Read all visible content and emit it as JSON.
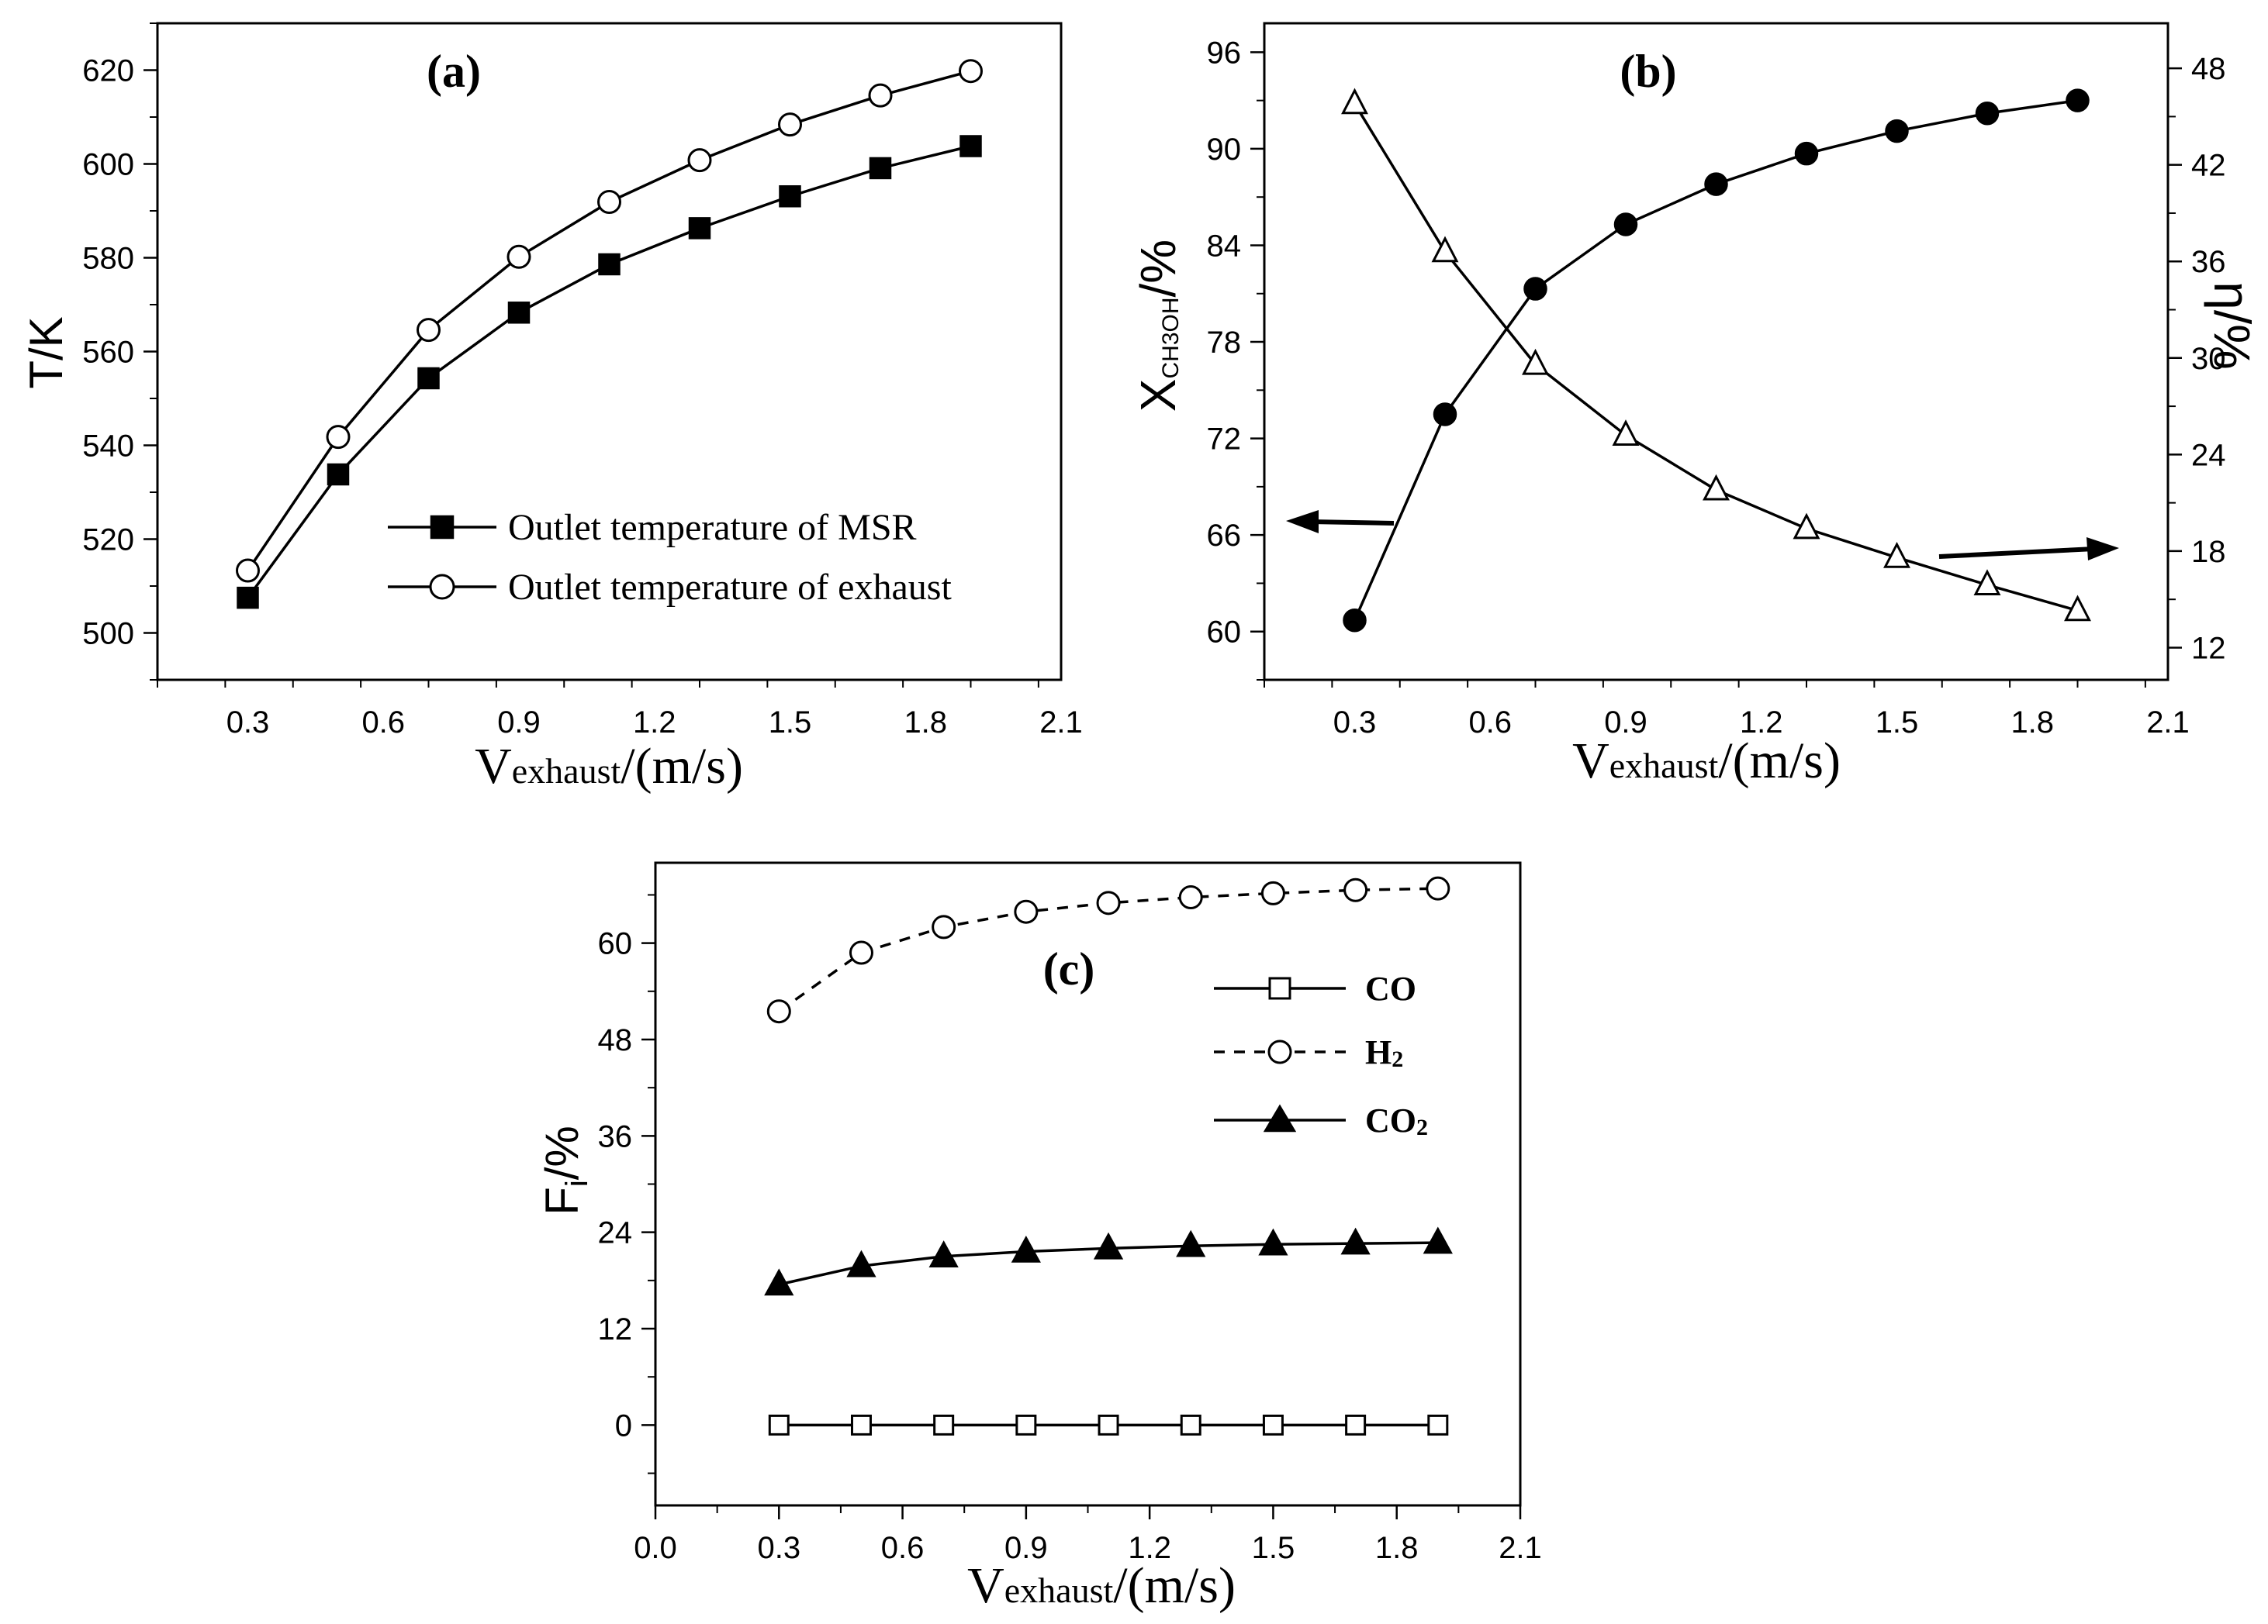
{
  "figure": {
    "colors": {
      "ink": "#000000",
      "background": "#ffffff"
    }
  },
  "chart_data": [
    {
      "id": "a",
      "type": "line",
      "panel_label": "(a)",
      "xlabel_main": "V",
      "xlabel_sub": "exhaust",
      "xlabel_unit": "/(m/s)",
      "ylabel": "T/K",
      "x": [
        0.3,
        0.5,
        0.7,
        0.9,
        1.1,
        1.3,
        1.5,
        1.7,
        1.9
      ],
      "xlim": [
        0.1,
        2.1
      ],
      "ylim": [
        490,
        630
      ],
      "x_ticks": [
        "0.3",
        "0.6",
        "0.9",
        "1.2",
        "1.5",
        "1.8",
        "2.1"
      ],
      "x_tick_values": [
        0.3,
        0.6,
        0.9,
        1.2,
        1.5,
        1.8,
        2.1
      ],
      "y_ticks": [
        "500",
        "520",
        "540",
        "560",
        "580",
        "600",
        "620"
      ],
      "y_tick_values": [
        500,
        520,
        540,
        560,
        580,
        600,
        620
      ],
      "legend_position": "lower-right",
      "series": [
        {
          "name": "Outlet temperature of MSR",
          "marker": "square-filled",
          "line": "solid",
          "values": [
            507.5,
            533.8,
            554.3,
            568.3,
            578.6,
            586.3,
            593.1,
            599.1,
            603.8
          ]
        },
        {
          "name": "Outlet temperature of exhaust",
          "marker": "circle-open",
          "line": "solid",
          "values": [
            513.3,
            541.8,
            564.6,
            580.2,
            591.9,
            600.8,
            608.4,
            614.6,
            619.8
          ]
        }
      ]
    },
    {
      "id": "b",
      "type": "line",
      "panel_label": "(b)",
      "xlabel_main": "V",
      "xlabel_sub": "exhaust",
      "xlabel_unit": "/(m/s)",
      "ylabel_main": "X",
      "ylabel_sub": "CH3OH",
      "ylabel_unit": "/%",
      "y2label": "η/%",
      "x": [
        0.3,
        0.5,
        0.7,
        0.9,
        1.1,
        1.3,
        1.5,
        1.7,
        1.9
      ],
      "xlim": [
        0.1,
        2.1
      ],
      "ylim": [
        57,
        97.8
      ],
      "y2lim": [
        10,
        50.8
      ],
      "x_ticks": [
        "0.3",
        "0.6",
        "0.9",
        "1.2",
        "1.5",
        "1.8",
        "2.1"
      ],
      "x_tick_values": [
        0.3,
        0.6,
        0.9,
        1.2,
        1.5,
        1.8,
        2.1
      ],
      "y_ticks": [
        "60",
        "66",
        "72",
        "78",
        "84",
        "90",
        "96"
      ],
      "y_tick_values": [
        60,
        66,
        72,
        78,
        84,
        90,
        96
      ],
      "y2_ticks": [
        "12",
        "18",
        "24",
        "30",
        "36",
        "42",
        "48"
      ],
      "y2_tick_values": [
        12,
        18,
        24,
        30,
        36,
        42,
        48
      ],
      "series": [
        {
          "name": "X_CH3OH",
          "axis": "left",
          "marker": "circle-filled",
          "line": "solid",
          "values": [
            60.7,
            73.5,
            81.3,
            85.3,
            87.8,
            89.7,
            91.1,
            92.2,
            93.0
          ]
        },
        {
          "name": "η",
          "axis": "right",
          "marker": "triangle-open",
          "line": "solid",
          "values": [
            45.8,
            36.6,
            29.6,
            25.2,
            21.8,
            19.4,
            17.6,
            15.9,
            14.3
          ]
        }
      ],
      "annotations": [
        "left arrow points to left axis",
        "right arrow points to right axis"
      ]
    },
    {
      "id": "c",
      "type": "line",
      "panel_label": "(c)",
      "xlabel_main": "V",
      "xlabel_sub": "exhaust",
      "xlabel_unit": "/(m/s)",
      "ylabel_main": "F",
      "ylabel_sub": "i",
      "ylabel_unit": "/%",
      "x": [
        0.3,
        0.5,
        0.7,
        0.9,
        1.1,
        1.3,
        1.5,
        1.7,
        1.9
      ],
      "xlim": [
        0.0,
        2.1
      ],
      "ylim": [
        -10,
        70
      ],
      "x_ticks": [
        "0.0",
        "0.3",
        "0.6",
        "0.9",
        "1.2",
        "1.5",
        "1.8",
        "2.1"
      ],
      "x_tick_values": [
        0.0,
        0.3,
        0.6,
        0.9,
        1.2,
        1.5,
        1.8,
        2.1
      ],
      "y_ticks": [
        "0",
        "12",
        "24",
        "36",
        "48",
        "60"
      ],
      "y_tick_values": [
        0,
        12,
        24,
        36,
        48,
        60
      ],
      "legend_position": "top-right",
      "series": [
        {
          "name": "CO",
          "marker": "square-open",
          "line": "solid",
          "values": [
            0,
            0,
            0,
            0,
            0,
            0,
            0,
            0,
            0
          ]
        },
        {
          "name": "H2",
          "label_main": "H",
          "label_sub": "2",
          "marker": "circle-open",
          "line": "dashed",
          "values": [
            51.5,
            58.8,
            62.0,
            63.9,
            65.0,
            65.7,
            66.2,
            66.6,
            66.8
          ]
        },
        {
          "name": "CO2",
          "label_main": "CO",
          "label_sub": "2",
          "marker": "triangle-filled",
          "line": "solid",
          "values": [
            17.5,
            19.8,
            21.0,
            21.6,
            22.0,
            22.3,
            22.5,
            22.6,
            22.7
          ]
        }
      ]
    }
  ]
}
